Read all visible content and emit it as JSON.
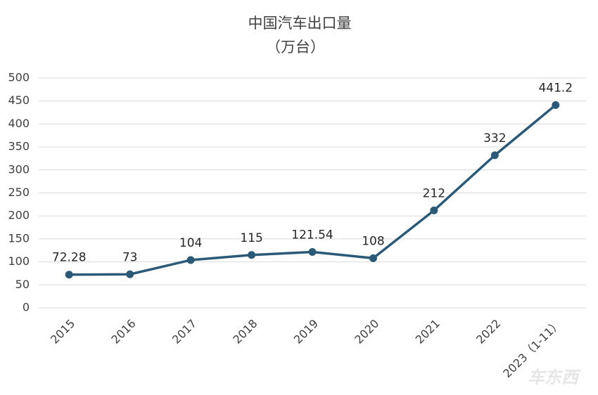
{
  "chart_data": {
    "type": "line",
    "title": "中国汽车出口量",
    "subtitle": "（万台）",
    "categories": [
      "2015",
      "2016",
      "2017",
      "2018",
      "2019",
      "2020",
      "2021",
      "2022",
      "2023（1-11）"
    ],
    "values": [
      72.28,
      73,
      104,
      115,
      121.54,
      108,
      212,
      332,
      441.2
    ],
    "color": "#2b5a78",
    "ylim": [
      0,
      500
    ],
    "yticks": [
      0,
      50,
      100,
      150,
      200,
      250,
      300,
      350,
      400,
      450,
      500
    ],
    "grid": true,
    "watermark": "车东西"
  }
}
